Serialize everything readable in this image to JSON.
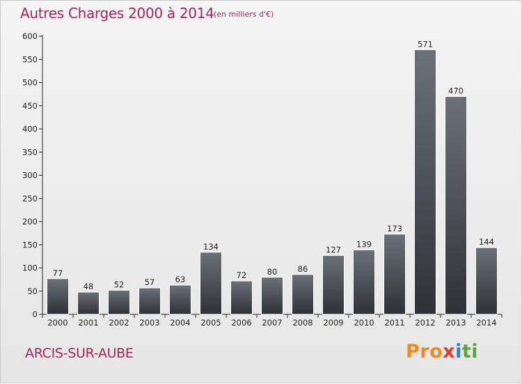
{
  "header": {
    "title": "Autres Charges 2000 à 2014",
    "subtitle": "(en milliers d'€)"
  },
  "footer": {
    "commune": "ARCIS-SUR-AUBE",
    "brand": [
      "Pro",
      "x",
      "i",
      "ti"
    ]
  },
  "colors": {
    "title": "#a0265a",
    "bar_light": "#6b7178",
    "bar_dark": "#2e3237"
  },
  "chart_data": {
    "type": "bar",
    "title": "Autres Charges 2000 à 2014",
    "subtitle": "(en milliers d'€)",
    "categories": [
      "2000",
      "2001",
      "2002",
      "2003",
      "2004",
      "2005",
      "2006",
      "2007",
      "2008",
      "2009",
      "2010",
      "2011",
      "2012",
      "2013",
      "2014"
    ],
    "values": [
      77,
      48,
      52,
      57,
      63,
      134,
      72,
      80,
      86,
      127,
      139,
      173,
      571,
      470,
      144
    ],
    "ylim": [
      0,
      600
    ],
    "yticks": [
      0,
      50,
      100,
      150,
      200,
      250,
      300,
      350,
      400,
      450,
      500,
      550,
      600
    ],
    "grid": false,
    "data_labels": true
  }
}
